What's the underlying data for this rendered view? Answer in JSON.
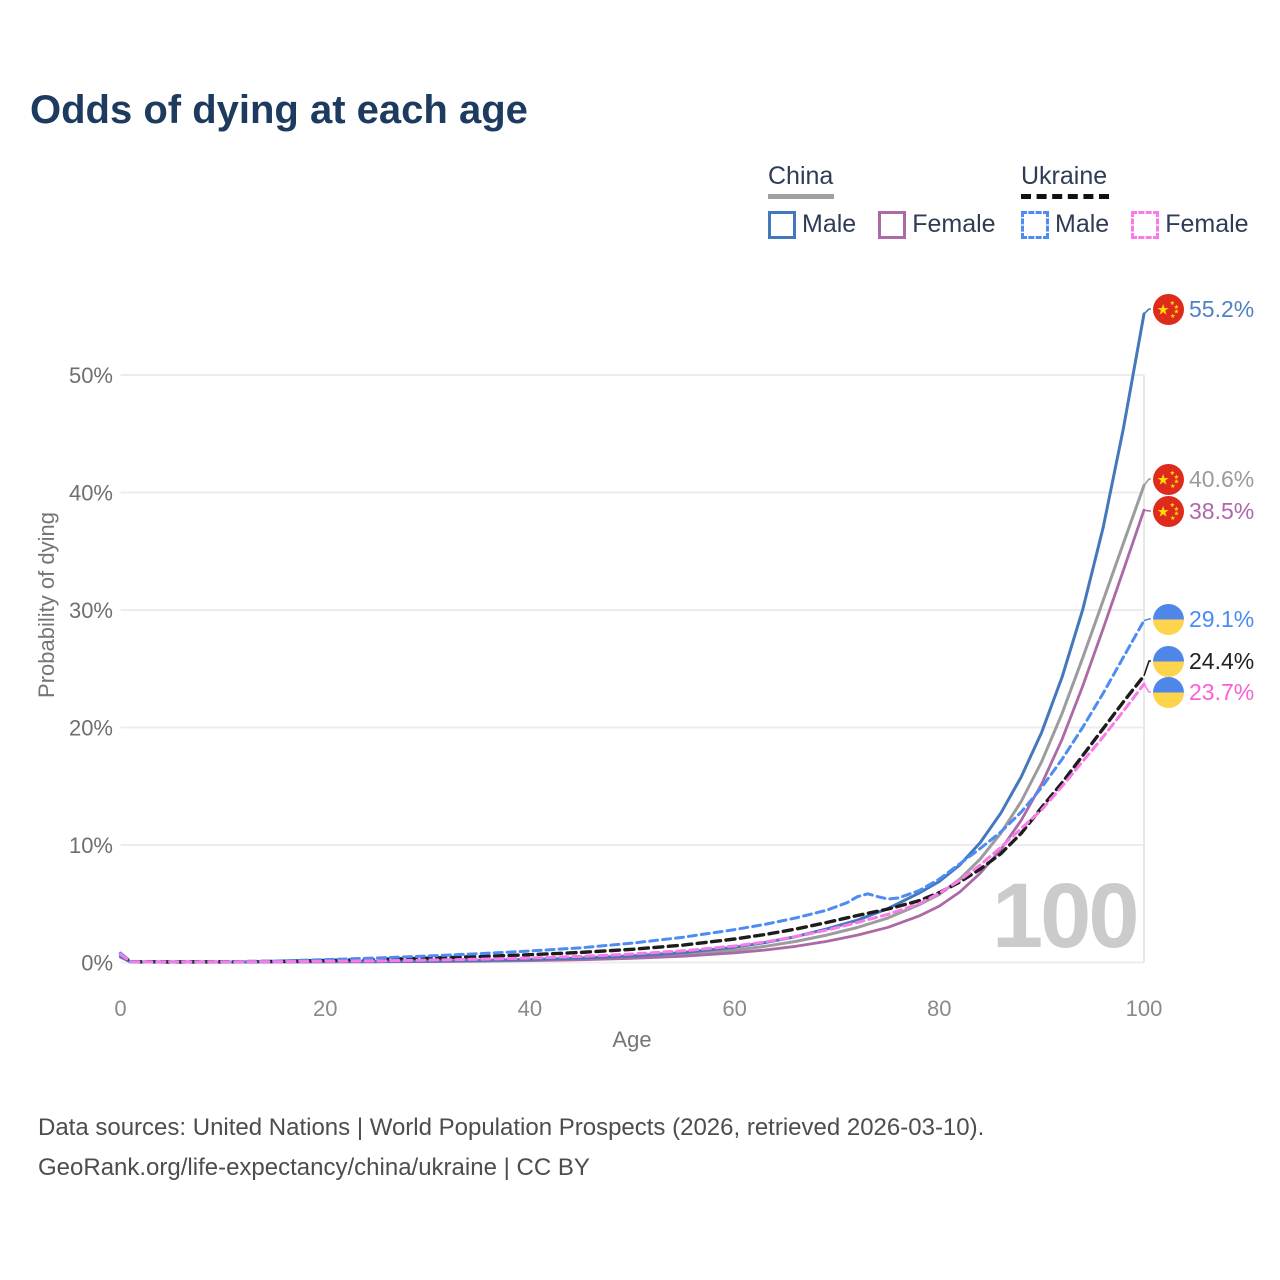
{
  "title": "Odds of dying at each age",
  "legend": {
    "groups": [
      {
        "label": "China",
        "style": "solid",
        "underline_color": "#a0a0a0",
        "items": [
          {
            "label": "Male",
            "color": "#4478bd"
          },
          {
            "label": "Female",
            "color": "#ab6aa5"
          }
        ]
      },
      {
        "label": "Ukraine",
        "style": "dashed",
        "underline_color": "#111111",
        "items": [
          {
            "label": "Male",
            "color": "#4e8cf2"
          },
          {
            "label": "Female",
            "color": "#f97ae9"
          }
        ]
      }
    ]
  },
  "annotations": {
    "age_cursor": "100"
  },
  "footer": {
    "line1": "Data sources: United Nations | World Population Prospects (2026, retrieved 2026-03-10).",
    "line2": "GeoRank.org/life-expectancy/china/ukraine | CC BY"
  },
  "chart_data": {
    "type": "line",
    "title": "Odds of dying at each age",
    "xlabel": "Age",
    "ylabel": "Probability of dying",
    "xlim": [
      0,
      100
    ],
    "ylim": [
      0,
      57
    ],
    "grid": true,
    "legend_position": "top-right",
    "xticks": [
      0,
      20,
      40,
      60,
      80,
      100
    ],
    "yticks": [
      {
        "value": 0,
        "label": "0%"
      },
      {
        "value": 10,
        "label": "10%"
      },
      {
        "value": 20,
        "label": "20%"
      },
      {
        "value": 30,
        "label": "30%"
      },
      {
        "value": 40,
        "label": "40%"
      },
      {
        "value": 50,
        "label": "50%"
      }
    ],
    "series": [
      {
        "id": "china-total",
        "name": "China (both sexes)",
        "country": "China",
        "sex": "both",
        "color": "#9c9c9c",
        "style": "solid",
        "end_value": 40.6,
        "end_label": "40.6%",
        "label_color": "#9b9b9b",
        "points": [
          [
            0,
            0.5
          ],
          [
            1,
            0.045
          ],
          [
            5,
            0.035
          ],
          [
            10,
            0.035
          ],
          [
            15,
            0.05
          ],
          [
            20,
            0.065
          ],
          [
            25,
            0.08
          ],
          [
            30,
            0.1
          ],
          [
            35,
            0.15
          ],
          [
            40,
            0.21
          ],
          [
            45,
            0.31
          ],
          [
            50,
            0.46
          ],
          [
            55,
            0.69
          ],
          [
            60,
            1.05
          ],
          [
            63,
            1.38
          ],
          [
            66,
            1.8
          ],
          [
            69,
            2.33
          ],
          [
            72,
            2.98
          ],
          [
            75,
            3.8
          ],
          [
            78,
            4.9
          ],
          [
            80,
            5.8
          ],
          [
            82,
            7.1
          ],
          [
            84,
            8.8
          ],
          [
            86,
            11.0
          ],
          [
            88,
            13.7
          ],
          [
            90,
            17.1
          ],
          [
            92,
            21.2
          ],
          [
            94,
            25.9
          ],
          [
            96,
            30.8
          ],
          [
            98,
            35.7
          ],
          [
            100,
            40.6
          ]
        ]
      },
      {
        "id": "china-female",
        "name": "China female",
        "country": "China",
        "sex": "female",
        "color": "#ab6aa5",
        "style": "solid",
        "end_value": 38.5,
        "end_label": "38.5%",
        "label_color": "#b066a8",
        "points": [
          [
            0,
            0.45
          ],
          [
            1,
            0.04
          ],
          [
            5,
            0.03
          ],
          [
            10,
            0.03
          ],
          [
            15,
            0.04
          ],
          [
            20,
            0.05
          ],
          [
            25,
            0.06
          ],
          [
            30,
            0.08
          ],
          [
            35,
            0.11
          ],
          [
            40,
            0.16
          ],
          [
            45,
            0.24
          ],
          [
            50,
            0.36
          ],
          [
            55,
            0.54
          ],
          [
            60,
            0.82
          ],
          [
            63,
            1.06
          ],
          [
            66,
            1.38
          ],
          [
            69,
            1.8
          ],
          [
            72,
            2.33
          ],
          [
            75,
            3.0
          ],
          [
            78,
            3.95
          ],
          [
            80,
            4.8
          ],
          [
            82,
            6.0
          ],
          [
            84,
            7.6
          ],
          [
            86,
            9.6
          ],
          [
            88,
            12.1
          ],
          [
            90,
            15.2
          ],
          [
            92,
            19.0
          ],
          [
            94,
            23.5
          ],
          [
            96,
            28.4
          ],
          [
            98,
            33.4
          ],
          [
            100,
            38.5
          ]
        ]
      },
      {
        "id": "china-male",
        "name": "China male",
        "country": "China",
        "sex": "male",
        "color": "#4478bd",
        "style": "solid",
        "end_value": 55.2,
        "end_label": "55.2%",
        "label_color": "#4f82c4",
        "points": [
          [
            0,
            0.55
          ],
          [
            1,
            0.05
          ],
          [
            5,
            0.04
          ],
          [
            10,
            0.04
          ],
          [
            15,
            0.06
          ],
          [
            20,
            0.08
          ],
          [
            25,
            0.1
          ],
          [
            30,
            0.13
          ],
          [
            35,
            0.18
          ],
          [
            40,
            0.26
          ],
          [
            45,
            0.38
          ],
          [
            50,
            0.56
          ],
          [
            55,
            0.85
          ],
          [
            60,
            1.3
          ],
          [
            63,
            1.7
          ],
          [
            66,
            2.2
          ],
          [
            69,
            2.85
          ],
          [
            72,
            3.6
          ],
          [
            75,
            4.6
          ],
          [
            78,
            5.9
          ],
          [
            80,
            6.9
          ],
          [
            82,
            8.3
          ],
          [
            84,
            10.2
          ],
          [
            86,
            12.7
          ],
          [
            88,
            15.8
          ],
          [
            90,
            19.6
          ],
          [
            92,
            24.3
          ],
          [
            94,
            30.0
          ],
          [
            96,
            37.0
          ],
          [
            98,
            45.5
          ],
          [
            100,
            55.2
          ]
        ]
      },
      {
        "id": "ukraine-total",
        "name": "Ukraine (both sexes)",
        "country": "Ukraine",
        "sex": "both",
        "color": "#1d1d1d",
        "style": "dashed",
        "end_value": 24.4,
        "end_label": "24.4%",
        "label_color": "#222222",
        "points": [
          [
            0,
            0.75
          ],
          [
            1,
            0.06
          ],
          [
            5,
            0.05
          ],
          [
            10,
            0.06
          ],
          [
            15,
            0.09
          ],
          [
            20,
            0.17
          ],
          [
            25,
            0.26
          ],
          [
            30,
            0.37
          ],
          [
            35,
            0.5
          ],
          [
            40,
            0.66
          ],
          [
            45,
            0.86
          ],
          [
            50,
            1.12
          ],
          [
            55,
            1.48
          ],
          [
            60,
            2.0
          ],
          [
            63,
            2.38
          ],
          [
            66,
            2.85
          ],
          [
            69,
            3.4
          ],
          [
            72,
            4.0
          ],
          [
            75,
            4.55
          ],
          [
            78,
            5.25
          ],
          [
            80,
            5.95
          ],
          [
            82,
            6.85
          ],
          [
            84,
            7.95
          ],
          [
            86,
            9.25
          ],
          [
            88,
            11.0
          ],
          [
            90,
            13.2
          ],
          [
            92,
            15.3
          ],
          [
            94,
            17.6
          ],
          [
            96,
            19.9
          ],
          [
            98,
            22.2
          ],
          [
            100,
            24.4
          ]
        ]
      },
      {
        "id": "ukraine-male",
        "name": "Ukraine male",
        "country": "Ukraine",
        "sex": "male",
        "color": "#4e8cf2",
        "style": "dashed",
        "end_value": 29.1,
        "end_label": "29.1%",
        "label_color": "#4a8bf5",
        "points": [
          [
            0,
            0.8
          ],
          [
            1,
            0.07
          ],
          [
            5,
            0.06
          ],
          [
            10,
            0.07
          ],
          [
            15,
            0.12
          ],
          [
            20,
            0.25
          ],
          [
            25,
            0.38
          ],
          [
            30,
            0.55
          ],
          [
            35,
            0.75
          ],
          [
            40,
            0.98
          ],
          [
            45,
            1.25
          ],
          [
            50,
            1.65
          ],
          [
            55,
            2.15
          ],
          [
            60,
            2.8
          ],
          [
            63,
            3.25
          ],
          [
            66,
            3.8
          ],
          [
            69,
            4.45
          ],
          [
            71,
            5.1
          ],
          [
            72,
            5.6
          ],
          [
            73,
            5.85
          ],
          [
            74,
            5.6
          ],
          [
            75,
            5.4
          ],
          [
            76,
            5.5
          ],
          [
            78,
            6.1
          ],
          [
            80,
            7.1
          ],
          [
            82,
            8.4
          ],
          [
            84,
            9.7
          ],
          [
            86,
            11.1
          ],
          [
            88,
            12.8
          ],
          [
            90,
            14.9
          ],
          [
            92,
            17.3
          ],
          [
            94,
            20.0
          ],
          [
            96,
            22.9
          ],
          [
            98,
            26.0
          ],
          [
            100,
            29.1
          ]
        ]
      },
      {
        "id": "ukraine-female",
        "name": "Ukraine female",
        "country": "Ukraine",
        "sex": "female",
        "color": "#f97ae9",
        "style": "dashed",
        "end_value": 23.7,
        "end_label": "23.7%",
        "label_color": "#fa5fd9",
        "points": [
          [
            0,
            0.7
          ],
          [
            1,
            0.05
          ],
          [
            5,
            0.04
          ],
          [
            10,
            0.05
          ],
          [
            15,
            0.07
          ],
          [
            20,
            0.1
          ],
          [
            25,
            0.14
          ],
          [
            30,
            0.2
          ],
          [
            35,
            0.28
          ],
          [
            40,
            0.38
          ],
          [
            45,
            0.52
          ],
          [
            50,
            0.72
          ],
          [
            55,
            1.0
          ],
          [
            60,
            1.4
          ],
          [
            63,
            1.75
          ],
          [
            66,
            2.2
          ],
          [
            69,
            2.75
          ],
          [
            72,
            3.4
          ],
          [
            75,
            4.1
          ],
          [
            78,
            5.0
          ],
          [
            80,
            5.9
          ],
          [
            82,
            7.0
          ],
          [
            84,
            8.3
          ],
          [
            86,
            9.8
          ],
          [
            88,
            11.4
          ],
          [
            90,
            13.0
          ],
          [
            92,
            15.0
          ],
          [
            94,
            17.1
          ],
          [
            96,
            19.2
          ],
          [
            98,
            21.4
          ],
          [
            100,
            23.7
          ]
        ]
      }
    ]
  }
}
